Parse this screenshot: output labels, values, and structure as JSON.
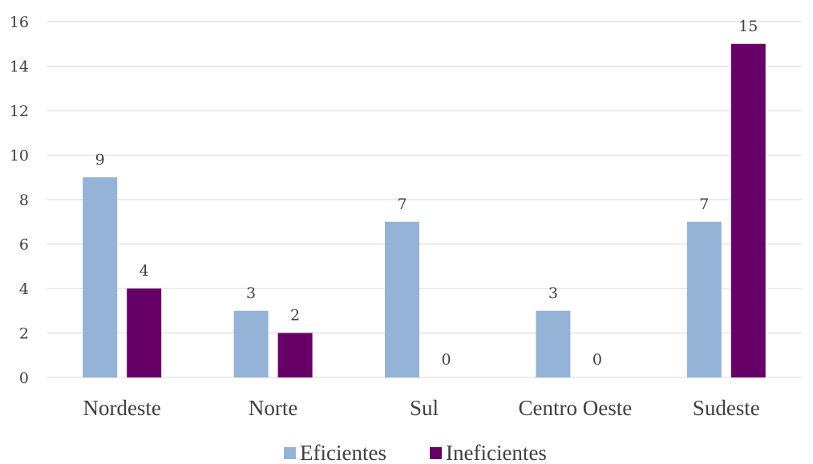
{
  "chart_data": {
    "type": "bar",
    "title": "",
    "xlabel": "",
    "ylabel": "",
    "categories": [
      "Nordeste",
      "Norte",
      "Sul",
      "Centro Oeste",
      "Sudeste"
    ],
    "series": [
      {
        "name": "Eficientes",
        "values": [
          9,
          3,
          7,
          3,
          7
        ],
        "color": "#95b3d7"
      },
      {
        "name": "Ineficientes",
        "values": [
          4,
          2,
          0,
          0,
          15
        ],
        "color": "#660066"
      }
    ],
    "ylim": [
      0,
      16
    ],
    "yticks": [
      "0",
      "2",
      "4",
      "6",
      "8",
      "10",
      "12",
      "14",
      "16"
    ],
    "grid": true,
    "legend_position": "bottom",
    "data_labels": true,
    "text_color": "#404040",
    "grid_color": "#d9d9d9"
  }
}
